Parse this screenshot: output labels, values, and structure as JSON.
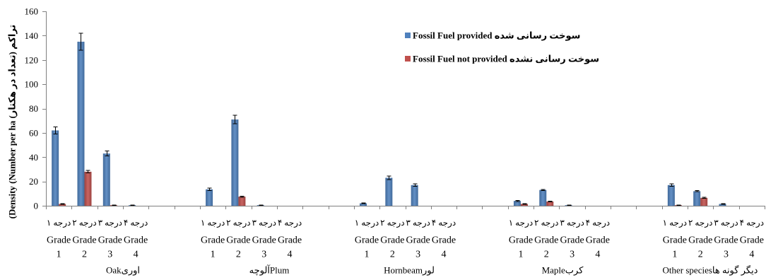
{
  "chart_data": {
    "type": "bar",
    "ylabel": "(Density (Number per ha تراکم (تعداد در هکتار)",
    "ylim": [
      0,
      160
    ],
    "yticks": [
      0,
      20,
      40,
      60,
      80,
      100,
      120,
      140,
      160
    ],
    "grid": false,
    "legend": "top-right",
    "groups": [
      "Oakاوری",
      "آلوچهPlum",
      "Hornbeamلور",
      "Mapleکرب",
      "Other speciesدیگر گونه ها"
    ],
    "categories": [
      {
        "fa": "درجه ۱",
        "en": "Grade",
        "num": "1"
      },
      {
        "fa": "درجه ۲",
        "en": "Grade",
        "num": "2"
      },
      {
        "fa": "درجه ۳",
        "en": "Grade",
        "num": "3"
      },
      {
        "fa": "درجه ۴",
        "en": "Grade",
        "num": "4"
      }
    ],
    "series": [
      {
        "name": "Fossil Fuel provided سوخت رسانی شده",
        "color": "#4F81BD",
        "values": [
          [
            62,
            135,
            43,
            0.5
          ],
          [
            13.5,
            71,
            0.5,
            0
          ],
          [
            2,
            23,
            17,
            0
          ],
          [
            4,
            13,
            0.5,
            0
          ],
          [
            17,
            12,
            1.5,
            0
          ]
        ],
        "errors": [
          [
            3,
            7,
            2,
            0.2
          ],
          [
            1,
            3.5,
            0.2,
            0
          ],
          [
            0.3,
            1.5,
            1,
            0
          ],
          [
            0.5,
            0.5,
            0.2,
            0
          ],
          [
            1,
            0.5,
            0.3,
            0
          ]
        ]
      },
      {
        "name": "Fossil Fuel not provided سوخت رسانی نشده",
        "color": "#C0504D",
        "values": [
          [
            1.5,
            28,
            0.5,
            0
          ],
          [
            0,
            7.5,
            0,
            0
          ],
          [
            0,
            0,
            0,
            0
          ],
          [
            1.5,
            3.5,
            0,
            0
          ],
          [
            0.5,
            6.5,
            0,
            0
          ]
        ],
        "errors": [
          [
            0.3,
            1,
            0.2,
            0
          ],
          [
            0,
            0.5,
            0,
            0
          ],
          [
            0,
            0,
            0,
            0
          ],
          [
            0.3,
            0.3,
            0,
            0
          ],
          [
            0.2,
            0.5,
            0,
            0
          ]
        ]
      }
    ]
  }
}
